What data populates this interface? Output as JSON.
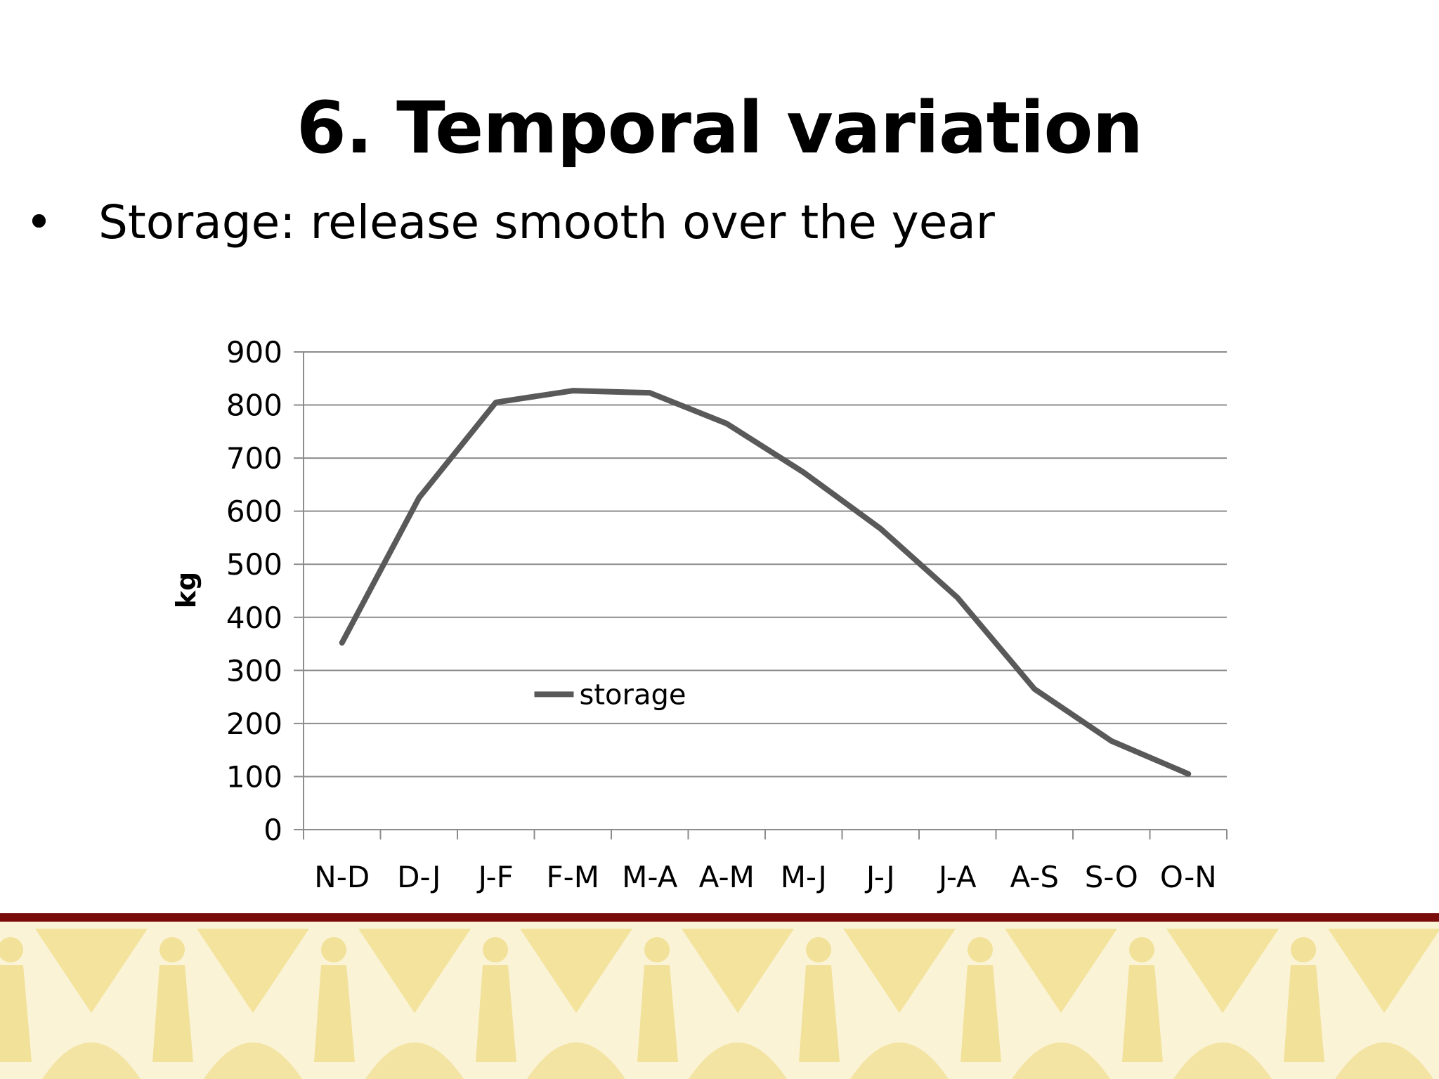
{
  "slide": {
    "title": "6. Temporal variation",
    "bullet": "Storage: release smooth over the year"
  },
  "colors": {
    "series": "#595959",
    "gridline": "#8c8c8c",
    "footer_line": "#7a0b0b",
    "footer_band": "#faf3d6",
    "footer_motif": "#f1df92"
  },
  "footer_decoration_icon": "figures-and-triangles-pattern",
  "chart_data": {
    "type": "line",
    "categories": [
      "N-D",
      "D-J",
      "J-F",
      "F-M",
      "M-A",
      "A-M",
      "M-J",
      "J-J",
      "J-A",
      "A-S",
      "S-O",
      "O-N"
    ],
    "series": [
      {
        "name": "storage",
        "values": [
          352,
          625,
          805,
          827,
          823,
          765,
          673,
          567,
          437,
          265,
          167,
          105
        ]
      }
    ],
    "ylabel": "kg",
    "xlabel": "",
    "ylim": [
      0,
      900
    ],
    "yticks": [
      0,
      100,
      200,
      300,
      400,
      500,
      600,
      700,
      800,
      900
    ],
    "grid": true,
    "legend_position": "inside-bottom-center"
  }
}
